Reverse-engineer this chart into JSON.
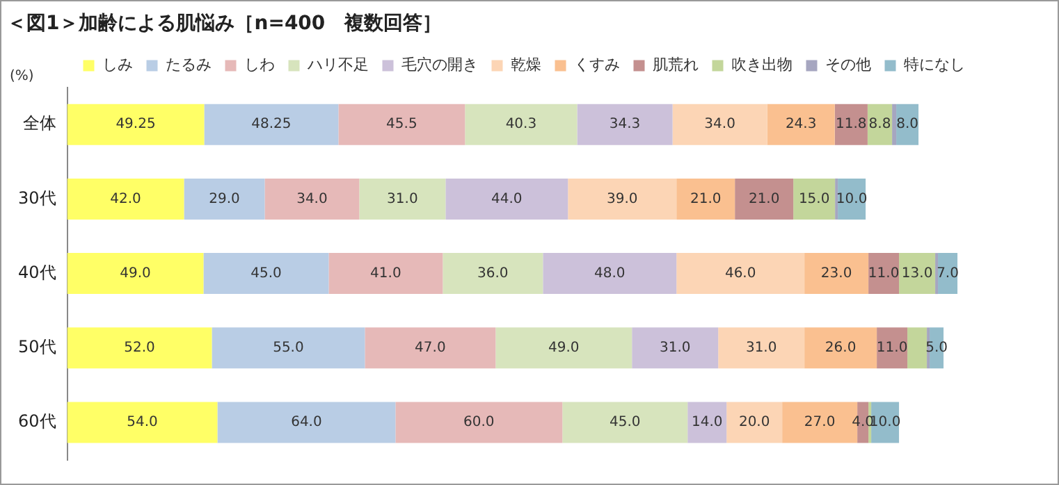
{
  "chart_data": {
    "type": "bar",
    "orientation": "horizontal",
    "stacked": true,
    "title": "＜図1＞加齢による肌悩み［n=400　複数回答］",
    "annotations": [
      "(%)"
    ],
    "categories": [
      "全体",
      "30代",
      "40代",
      "50代",
      "60代"
    ],
    "tick_labels": "y",
    "grid": false,
    "legend": "top",
    "series": [
      {
        "name": "しみ",
        "color": "#ffff66",
        "values": [
          49.25,
          42.0,
          49.0,
          52.0,
          54.0
        ],
        "value_labels": [
          "49.25",
          "42.0",
          "49.0",
          "52.0",
          "54.0"
        ]
      },
      {
        "name": "たるみ",
        "color": "#b9cde5",
        "values": [
          48.25,
          29.0,
          45.0,
          55.0,
          64.0
        ],
        "value_labels": [
          "48.25",
          "29.0",
          "45.0",
          "55.0",
          "64.0"
        ]
      },
      {
        "name": "しわ",
        "color": "#e6b9b8",
        "values": [
          45.5,
          34.0,
          41.0,
          47.0,
          60.0
        ],
        "value_labels": [
          "45.5",
          "34.0",
          "41.0",
          "47.0",
          "60.0"
        ]
      },
      {
        "name": "ハリ不足",
        "color": "#d7e4bd",
        "values": [
          40.3,
          31.0,
          36.0,
          49.0,
          45.0
        ],
        "value_labels": [
          "40.3",
          "31.0",
          "36.0",
          "49.0",
          "45.0"
        ]
      },
      {
        "name": "毛穴の開き",
        "color": "#ccc1da",
        "values": [
          34.3,
          44.0,
          48.0,
          31.0,
          14.0
        ],
        "value_labels": [
          "34.3",
          "44.0",
          "48.0",
          "31.0",
          "14.0"
        ]
      },
      {
        "name": "乾燥",
        "color": "#fcd5b5",
        "values": [
          34.0,
          39.0,
          46.0,
          31.0,
          20.0
        ],
        "value_labels": [
          "34.0",
          "39.0",
          "46.0",
          "31.0",
          "20.0"
        ]
      },
      {
        "name": "くすみ",
        "color": "#fac090",
        "values": [
          24.3,
          21.0,
          23.0,
          26.0,
          27.0
        ],
        "value_labels": [
          "24.3",
          "21.0",
          "23.0",
          "26.0",
          "27.0"
        ]
      },
      {
        "name": "肌荒れ",
        "color": "#c4908f",
        "values": [
          11.8,
          21.0,
          11.0,
          11.0,
          4.0
        ],
        "value_labels": [
          "11.8",
          "21.0",
          "11.0",
          "11.0",
          "4.0"
        ]
      },
      {
        "name": "吹き出物",
        "color": "#c3d69b",
        "values": [
          8.8,
          15.0,
          13.0,
          7.0,
          1.0
        ],
        "value_labels": [
          "8.8",
          "15.0",
          "13.0",
          null,
          null
        ]
      },
      {
        "name": "その他",
        "color": "#a6a6c0",
        "values": [
          1.5,
          1.0,
          1.0,
          1.0,
          null
        ],
        "value_labels": [
          null,
          null,
          null,
          null,
          null
        ]
      },
      {
        "name": "特になし",
        "color": "#93bccb",
        "values": [
          8.0,
          10.0,
          7.0,
          5.0,
          10.0
        ],
        "value_labels": [
          "8.0",
          "10.0",
          "7.0",
          "5.0",
          "10.0"
        ]
      }
    ]
  }
}
